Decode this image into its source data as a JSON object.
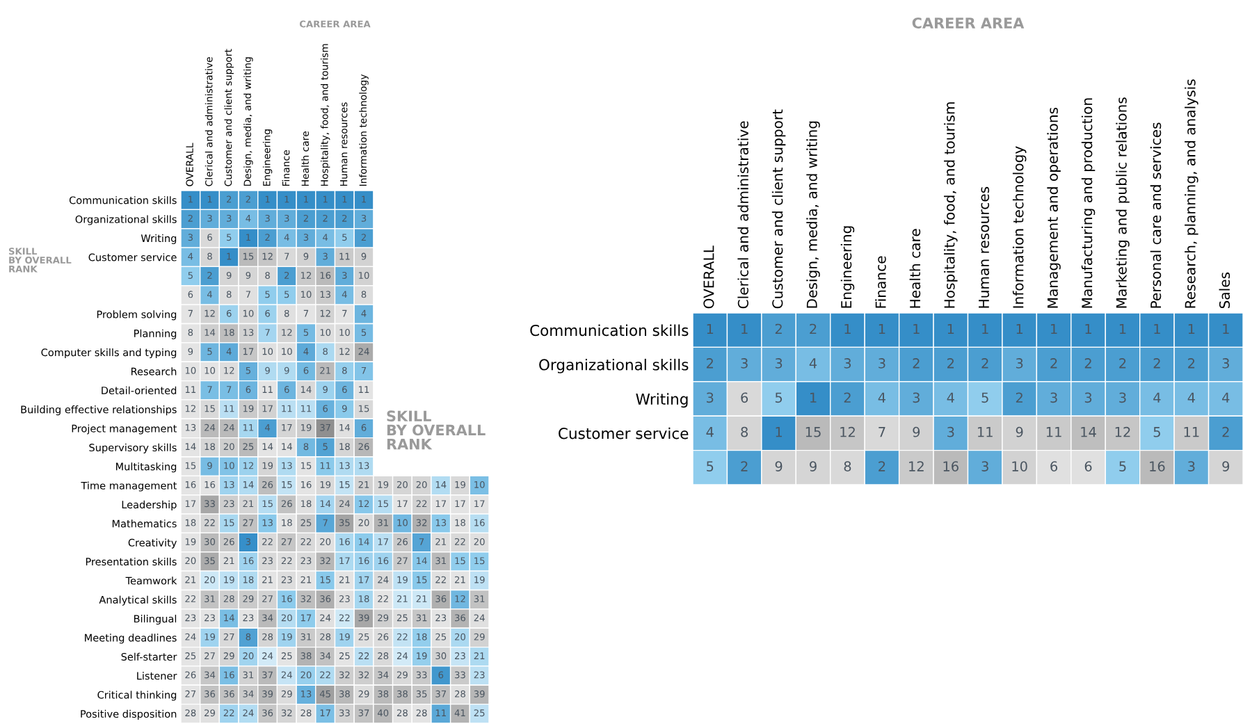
{
  "chart_data": [
    {
      "type": "heatmap",
      "data_labels": true,
      "xlabel": "CAREER AREA",
      "ylabel": "SKILL\nBY OVERALL\nRANK",
      "categories": [
        "OVERALL",
        "Clerical and administrative",
        "Customer and client support",
        "Design, media, and writing",
        "Engineering",
        "Finance",
        "Health care",
        "Hospitality, food, and tourism",
        "Human resources",
        "Information technology",
        null,
        null,
        null,
        null,
        null,
        null
      ],
      "y_categories": [
        "Communication skills",
        "Organizational skills",
        "Writing",
        "Customer service",
        null,
        null,
        "Problem solving",
        "Planning",
        "Computer skills and typing",
        "Research",
        "Detail-oriented",
        "Building effective relationships",
        "Project management",
        "Supervisory skills",
        "Multitasking",
        "Time management",
        "Leadership",
        "Mathematics",
        "Creativity",
        "Presentation skills",
        "Teamwork",
        "Analytical skills",
        "Bilingual",
        "Meeting deadlines",
        "Self-starter",
        "Listener",
        "Critical thinking",
        "Positive disposition"
      ],
      "cells": [
        [
          1,
          1,
          2,
          2,
          1,
          1,
          1,
          1,
          1,
          1,
          null,
          null,
          null,
          null,
          null,
          null
        ],
        [
          2,
          3,
          3,
          4,
          3,
          3,
          2,
          2,
          2,
          3,
          null,
          null,
          null,
          null,
          null,
          null
        ],
        [
          3,
          6,
          5,
          1,
          2,
          4,
          3,
          4,
          5,
          2,
          null,
          null,
          null,
          null,
          null,
          null
        ],
        [
          4,
          8,
          1,
          15,
          12,
          7,
          9,
          3,
          11,
          9,
          null,
          null,
          null,
          null,
          null,
          null
        ],
        [
          5,
          2,
          9,
          9,
          8,
          2,
          12,
          16,
          3,
          10,
          null,
          null,
          null,
          null,
          null,
          null
        ],
        [
          6,
          4,
          8,
          7,
          5,
          5,
          10,
          13,
          4,
          8,
          null,
          null,
          null,
          null,
          null,
          null
        ],
        [
          7,
          12,
          6,
          10,
          6,
          8,
          7,
          12,
          7,
          4,
          null,
          null,
          null,
          null,
          null,
          null
        ],
        [
          8,
          14,
          18,
          13,
          7,
          12,
          5,
          10,
          10,
          5,
          null,
          null,
          null,
          null,
          null,
          null
        ],
        [
          9,
          5,
          4,
          17,
          10,
          10,
          4,
          8,
          12,
          24,
          null,
          null,
          null,
          null,
          null,
          null
        ],
        [
          10,
          10,
          12,
          5,
          9,
          9,
          6,
          21,
          8,
          7,
          null,
          null,
          null,
          null,
          null,
          null
        ],
        [
          11,
          7,
          7,
          6,
          11,
          6,
          14,
          9,
          6,
          11,
          null,
          null,
          null,
          null,
          null,
          null
        ],
        [
          12,
          15,
          11,
          19,
          17,
          11,
          11,
          6,
          9,
          15,
          null,
          null,
          null,
          null,
          null,
          null
        ],
        [
          13,
          24,
          24,
          11,
          4,
          17,
          19,
          37,
          14,
          6,
          null,
          null,
          null,
          null,
          null,
          null
        ],
        [
          14,
          18,
          20,
          25,
          14,
          14,
          8,
          5,
          18,
          26,
          null,
          null,
          null,
          null,
          null,
          null
        ],
        [
          15,
          9,
          10,
          12,
          19,
          13,
          15,
          11,
          13,
          13,
          null,
          null,
          null,
          null,
          null,
          null
        ],
        [
          16,
          16,
          13,
          14,
          26,
          15,
          16,
          19,
          15,
          21,
          19,
          20,
          20,
          14,
          19,
          10
        ],
        [
          17,
          33,
          23,
          21,
          15,
          26,
          18,
          14,
          24,
          12,
          15,
          17,
          22,
          17,
          17,
          17
        ],
        [
          18,
          22,
          15,
          27,
          13,
          18,
          25,
          7,
          35,
          20,
          31,
          10,
          32,
          13,
          18,
          16
        ],
        [
          19,
          30,
          26,
          3,
          22,
          27,
          22,
          20,
          16,
          14,
          17,
          26,
          7,
          21,
          22,
          20
        ],
        [
          20,
          35,
          21,
          16,
          23,
          22,
          23,
          32,
          17,
          16,
          16,
          27,
          14,
          31,
          15,
          15
        ],
        [
          21,
          20,
          19,
          18,
          21,
          23,
          21,
          15,
          21,
          17,
          24,
          19,
          15,
          22,
          21,
          19
        ],
        [
          22,
          31,
          28,
          29,
          27,
          16,
          32,
          36,
          23,
          18,
          22,
          21,
          21,
          36,
          12,
          31
        ],
        [
          23,
          23,
          14,
          23,
          34,
          20,
          17,
          24,
          22,
          39,
          29,
          25,
          31,
          23,
          36,
          24
        ],
        [
          24,
          19,
          27,
          8,
          28,
          19,
          31,
          28,
          19,
          25,
          26,
          22,
          18,
          25,
          20,
          29
        ],
        [
          25,
          27,
          29,
          20,
          24,
          25,
          38,
          34,
          25,
          22,
          28,
          24,
          19,
          30,
          23,
          21
        ],
        [
          26,
          34,
          16,
          31,
          37,
          24,
          20,
          22,
          32,
          32,
          34,
          29,
          33,
          6,
          33,
          23
        ],
        [
          27,
          36,
          36,
          34,
          39,
          29,
          13,
          45,
          38,
          29,
          38,
          38,
          35,
          37,
          28,
          39
        ],
        [
          28,
          29,
          22,
          24,
          36,
          32,
          28,
          17,
          33,
          37,
          40,
          28,
          28,
          11,
          41,
          25
        ]
      ]
    },
    {
      "type": "heatmap",
      "data_labels": true,
      "xlabel": "CAREER AREA",
      "ylabel": "SKILL\nBY OVERALL\nRANK",
      "categories": [
        "OVERALL",
        "Clerical and administrative",
        "Customer and client support",
        "Design, media, and writing",
        "Engineering",
        "Finance",
        "Health care",
        "Hospitality, food, and tourism",
        "Human resources",
        "Information technology",
        "Management and operations",
        "Manufacturing and production",
        "Marketing and public relations",
        "Personal care and services",
        "Research, planning, and analysis",
        "Sales"
      ],
      "y_categories": [
        "Communication skills",
        "Organizational skills",
        "Writing",
        "Customer service",
        null
      ],
      "cells": [
        [
          1,
          1,
          2,
          2,
          1,
          1,
          1,
          1,
          1,
          1,
          1,
          1,
          1,
          1,
          1,
          1
        ],
        [
          2,
          3,
          3,
          4,
          3,
          3,
          2,
          2,
          2,
          3,
          2,
          2,
          2,
          2,
          2,
          3
        ],
        [
          3,
          6,
          5,
          1,
          2,
          4,
          3,
          4,
          5,
          2,
          3,
          3,
          3,
          4,
          4,
          4
        ],
        [
          4,
          8,
          1,
          15,
          12,
          7,
          9,
          3,
          11,
          9,
          11,
          14,
          12,
          5,
          11,
          2
        ],
        [
          5,
          2,
          9,
          9,
          8,
          2,
          12,
          16,
          3,
          10,
          6,
          6,
          5,
          16,
          3,
          9
        ]
      ]
    }
  ]
}
